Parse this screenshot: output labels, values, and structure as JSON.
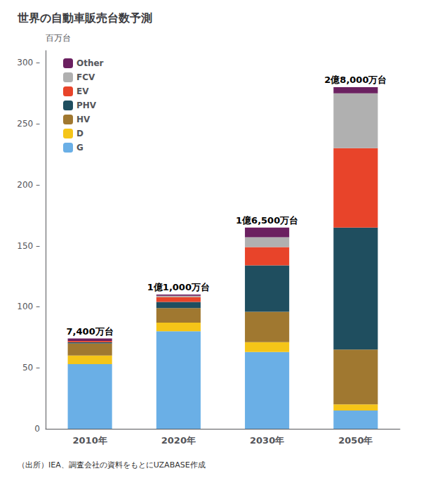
{
  "chart_data": {
    "type": "bar",
    "stacked": true,
    "title": "世界の自動車販売台数予測",
    "ylabel": "百万台",
    "source": "（出所）IEA、調査会社の資料をもとにUZABASE作成",
    "categories": [
      "2010年",
      "2020年",
      "2030年",
      "2050年"
    ],
    "series": [
      {
        "name": "G",
        "color": "#6AAFE6",
        "values": [
          53,
          80,
          63,
          15
        ]
      },
      {
        "name": "D",
        "color": "#F5C518",
        "values": [
          7,
          7,
          8,
          5
        ]
      },
      {
        "name": "HV",
        "color": "#A07830",
        "values": [
          10,
          12,
          25,
          45
        ]
      },
      {
        "name": "PHV",
        "color": "#1F4E5F",
        "values": [
          1,
          5,
          38,
          100
        ]
      },
      {
        "name": "EV",
        "color": "#E8442A",
        "values": [
          1,
          4,
          15,
          65
        ]
      },
      {
        "name": "FCV",
        "color": "#B0B0B0",
        "values": [
          0,
          1,
          8,
          45
        ]
      },
      {
        "name": "Other",
        "color": "#6B2060",
        "values": [
          2,
          1,
          8,
          5
        ]
      }
    ],
    "annotations": [
      {
        "text": "7,400万台",
        "x": "2010年",
        "y": 74
      },
      {
        "text": "1億1,000万台",
        "x": "2020年",
        "y": 110
      },
      {
        "text": "1億6,500万台",
        "x": "2030年",
        "y": 165
      },
      {
        "text": "2億8,000万台",
        "x": "2050年",
        "y": 280
      }
    ],
    "ylim": [
      0,
      310
    ],
    "yticks": [
      0,
      {
        "value": 50,
        "label": "50 –"
      },
      {
        "value": 100,
        "label": "100 –"
      },
      {
        "value": 150,
        "label": "150 –"
      },
      {
        "value": 200,
        "label": "200 –"
      },
      {
        "value": 250,
        "label": "250 –"
      },
      {
        "value": 300,
        "label": "300 –"
      }
    ],
    "grid": false,
    "legend": "upper left"
  }
}
